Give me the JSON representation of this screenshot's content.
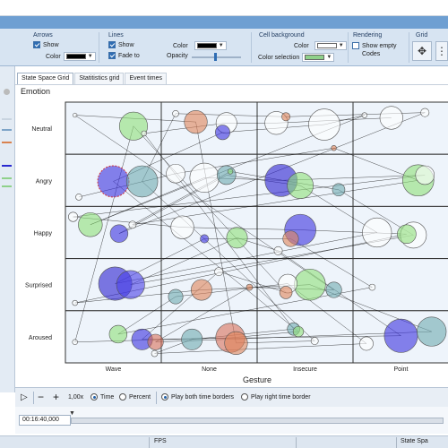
{
  "ribbon": {
    "arrows": {
      "title": "Arrows",
      "show_label": "Show",
      "show_checked": true,
      "color_label": "Color",
      "color": "#000000"
    },
    "lines": {
      "title": "Lines",
      "show_label": "Show",
      "show_checked": true,
      "fade_label": "Fade to",
      "fade_checked": true,
      "color_label": "Color",
      "color": "#000000",
      "opacity_label": "Opacity",
      "opacity": 0.55
    },
    "cell_background": {
      "title": "Cell background",
      "color_label": "Color",
      "color": "#ffffff",
      "selection_label": "Color selection",
      "selection_color": "#8fd18a"
    },
    "rendering": {
      "title": "Rendering",
      "show_empty_label": "Show empty Codes",
      "show_empty_checked": false
    },
    "grid": {
      "title": "Grid",
      "icons": [
        "move-arrows-icon",
        "grid-layout-icon"
      ]
    }
  },
  "tabs": [
    {
      "label": "State Space Grid",
      "active": true
    },
    {
      "label": "Statitistics grid",
      "active": false
    },
    {
      "label": "Event times",
      "active": false
    }
  ],
  "playbar": {
    "speed": "1,00x",
    "time_label": "Time",
    "time_selected": true,
    "percent_label": "Percent",
    "play_both_label": "Play both time borders",
    "play_both_selected": true,
    "play_right_label": "Play right time border"
  },
  "timeline": {
    "time": "00:16:40,000"
  },
  "statusbar": {
    "fps_label": "FPS",
    "state_label": "State Spa"
  },
  "chart_data": {
    "type": "scatter",
    "title": "",
    "ylabel": "Emotion",
    "xlabel": "Gesture",
    "x_categories": [
      "Wave",
      "None",
      "Insecure",
      "Point"
    ],
    "y_categories": [
      "Neutral",
      "Angry",
      "Happy",
      "Surprised",
      "Aroused"
    ],
    "cell_background": "#eef4fb",
    "grid_color": "#333333",
    "bubbles": [
      {
        "x": "Wave",
        "y": "Neutral",
        "dx": 0.71,
        "dy": 0.46,
        "r": 0.27,
        "color": "#90e07a"
      },
      {
        "x": "Wave",
        "y": "Neutral",
        "dx": 0.1,
        "dy": 0.25,
        "r": 0.04,
        "color": "#ffffff"
      },
      {
        "x": "Wave",
        "y": "Neutral",
        "dx": 0.82,
        "dy": 0.6,
        "r": 0.05,
        "color": "#ffffff"
      },
      {
        "x": "Wave",
        "y": "Angry",
        "dx": 0.5,
        "dy": 0.52,
        "r": 0.3,
        "color": "#3b30e0",
        "dashed": true
      },
      {
        "x": "Wave",
        "y": "Angry",
        "dx": 0.8,
        "dy": 0.52,
        "r": 0.3,
        "color": "#6faab0"
      },
      {
        "x": "Wave",
        "y": "Angry",
        "dx": 0.14,
        "dy": 0.82,
        "r": 0.06,
        "color": "#ffffff"
      },
      {
        "x": "Wave",
        "y": "Happy",
        "dx": 0.26,
        "dy": 0.35,
        "r": 0.23,
        "color": "#90e07a"
      },
      {
        "x": "Wave",
        "y": "Happy",
        "dx": 0.56,
        "dy": 0.52,
        "r": 0.17,
        "color": "#3b30e0"
      },
      {
        "x": "Wave",
        "y": "Happy",
        "dx": 0.7,
        "dy": 0.35,
        "r": 0.07,
        "color": "#ffffff"
      },
      {
        "x": "Wave",
        "y": "Happy",
        "dx": 0.08,
        "dy": 0.2,
        "r": 0.09,
        "color": "#ffffff"
      },
      {
        "x": "Wave",
        "y": "Surprised",
        "dx": 0.52,
        "dy": 0.48,
        "r": 0.32,
        "color": "#2b20d0"
      },
      {
        "x": "Wave",
        "y": "Surprised",
        "dx": 0.68,
        "dy": 0.5,
        "r": 0.27,
        "color": "#4a40e8"
      },
      {
        "x": "Wave",
        "y": "Surprised",
        "dx": 0.1,
        "dy": 0.85,
        "r": 0.05,
        "color": "#ffffff"
      },
      {
        "x": "Wave",
        "y": "Aroused",
        "dx": 0.55,
        "dy": 0.45,
        "r": 0.17,
        "color": "#90e07a"
      },
      {
        "x": "Wave",
        "y": "Aroused",
        "dx": 0.8,
        "dy": 0.55,
        "r": 0.2,
        "color": "#3b30e0"
      },
      {
        "x": "Wave",
        "y": "Aroused",
        "dx": 0.94,
        "dy": 0.6,
        "r": 0.15,
        "color": "#d9705a"
      },
      {
        "x": "Wave",
        "y": "Aroused",
        "dx": 0.93,
        "dy": 0.82,
        "r": 0.06,
        "color": "#ffffff"
      },
      {
        "x": "Wave",
        "y": "Aroused",
        "dx": 0.1,
        "dy": 0.6,
        "r": 0.05,
        "color": "#ffffff"
      },
      {
        "x": "None",
        "y": "Neutral",
        "dx": 0.36,
        "dy": 0.38,
        "r": 0.22,
        "color": "#e0845a"
      },
      {
        "x": "None",
        "y": "Neutral",
        "dx": 0.68,
        "dy": 0.4,
        "r": 0.2,
        "color": "#ffffff"
      },
      {
        "x": "None",
        "y": "Neutral",
        "dx": 0.64,
        "dy": 0.58,
        "r": 0.14,
        "color": "#3b30e0"
      },
      {
        "x": "None",
        "y": "Neutral",
        "dx": 0.15,
        "dy": 0.22,
        "r": 0.06,
        "color": "#ffffff"
      },
      {
        "x": "None",
        "y": "Angry",
        "dx": 0.15,
        "dy": 0.37,
        "r": 0.18,
        "color": "#ffffff"
      },
      {
        "x": "None",
        "y": "Angry",
        "dx": 0.45,
        "dy": 0.45,
        "r": 0.28,
        "color": "#ffffff"
      },
      {
        "x": "None",
        "y": "Angry",
        "dx": 0.68,
        "dy": 0.4,
        "r": 0.18,
        "color": "#6faab0"
      },
      {
        "x": "None",
        "y": "Angry",
        "dx": 0.72,
        "dy": 0.33,
        "r": 0.05,
        "color": "#90e07a"
      },
      {
        "x": "None",
        "y": "Happy",
        "dx": 0.22,
        "dy": 0.4,
        "r": 0.22,
        "color": "#ffffff"
      },
      {
        "x": "None",
        "y": "Happy",
        "dx": 0.45,
        "dy": 0.62,
        "r": 0.08,
        "color": "#3b30e0"
      },
      {
        "x": "None",
        "y": "Happy",
        "dx": 0.79,
        "dy": 0.6,
        "r": 0.2,
        "color": "#90e07a"
      },
      {
        "x": "None",
        "y": "Surprised",
        "dx": 0.42,
        "dy": 0.6,
        "r": 0.2,
        "color": "#e0845a"
      },
      {
        "x": "None",
        "y": "Surprised",
        "dx": 0.15,
        "dy": 0.73,
        "r": 0.14,
        "color": "#6faab0"
      },
      {
        "x": "None",
        "y": "Surprised",
        "dx": 0.6,
        "dy": 0.25,
        "r": 0.08,
        "color": "#ffffff"
      },
      {
        "x": "None",
        "y": "Surprised",
        "dx": 0.92,
        "dy": 0.55,
        "r": 0.06,
        "color": "#e0845a"
      },
      {
        "x": "None",
        "y": "Aroused",
        "dx": 0.32,
        "dy": 0.55,
        "r": 0.2,
        "color": "#6faab0"
      },
      {
        "x": "None",
        "y": "Aroused",
        "dx": 0.72,
        "dy": 0.52,
        "r": 0.28,
        "color": "#d9705a"
      },
      {
        "x": "None",
        "y": "Aroused",
        "dx": 0.78,
        "dy": 0.62,
        "r": 0.22,
        "color": "#e0845a"
      },
      {
        "x": "Insecure",
        "y": "Neutral",
        "dx": 0.2,
        "dy": 0.4,
        "r": 0.22,
        "color": "#ffffff"
      },
      {
        "x": "Insecure",
        "y": "Neutral",
        "dx": 0.7,
        "dy": 0.43,
        "r": 0.3,
        "color": "#ffffff"
      },
      {
        "x": "Insecure",
        "y": "Neutral",
        "dx": 0.3,
        "dy": 0.28,
        "r": 0.08,
        "color": "#e0845a"
      },
      {
        "x": "Insecure",
        "y": "Neutral",
        "dx": 0.8,
        "dy": 0.88,
        "r": 0.05,
        "color": "#e0845a"
      },
      {
        "x": "Insecure",
        "y": "Angry",
        "dx": 0.25,
        "dy": 0.5,
        "r": 0.31,
        "color": "#2b20d0"
      },
      {
        "x": "Insecure",
        "y": "Angry",
        "dx": 0.45,
        "dy": 0.6,
        "r": 0.25,
        "color": "#90e07a"
      },
      {
        "x": "Insecure",
        "y": "Angry",
        "dx": 0.85,
        "dy": 0.68,
        "r": 0.12,
        "color": "#6faab0"
      },
      {
        "x": "Insecure",
        "y": "Happy",
        "dx": 0.45,
        "dy": 0.45,
        "r": 0.3,
        "color": "#3b30e0"
      },
      {
        "x": "Insecure",
        "y": "Happy",
        "dx": 0.35,
        "dy": 0.62,
        "r": 0.15,
        "color": "#e0845a"
      },
      {
        "x": "Insecure",
        "y": "Happy",
        "dx": 0.22,
        "dy": 0.85,
        "r": 0.08,
        "color": "#ffffff"
      },
      {
        "x": "Insecure",
        "y": "Surprised",
        "dx": 0.55,
        "dy": 0.5,
        "r": 0.3,
        "color": "#90e07a"
      },
      {
        "x": "Insecure",
        "y": "Surprised",
        "dx": 0.32,
        "dy": 0.48,
        "r": 0.18,
        "color": "#ffffff"
      },
      {
        "x": "Insecure",
        "y": "Surprised",
        "dx": 0.3,
        "dy": 0.65,
        "r": 0.12,
        "color": "#e0845a"
      },
      {
        "x": "Insecure",
        "y": "Surprised",
        "dx": 0.8,
        "dy": 0.6,
        "r": 0.15,
        "color": "#6faab0"
      },
      {
        "x": "Insecure",
        "y": "Aroused",
        "dx": 0.38,
        "dy": 0.35,
        "r": 0.12,
        "color": "#6faab0"
      },
      {
        "x": "Insecure",
        "y": "Aroused",
        "dx": 0.43,
        "dy": 0.4,
        "r": 0.1,
        "color": "#90e07a"
      },
      {
        "x": "Insecure",
        "y": "Aroused",
        "dx": 0.6,
        "dy": 0.58,
        "r": 0.07,
        "color": "#ffffff"
      },
      {
        "x": "Point",
        "y": "Neutral",
        "dx": 0.4,
        "dy": 0.3,
        "r": 0.22,
        "color": "#ffffff"
      },
      {
        "x": "Point",
        "y": "Neutral",
        "dx": 0.12,
        "dy": 0.25,
        "r": 0.05,
        "color": "#ffffff"
      },
      {
        "x": "Point",
        "y": "Neutral",
        "dx": 0.75,
        "dy": 0.2,
        "r": 0.08,
        "color": "#ffffff"
      },
      {
        "x": "Point",
        "y": "Angry",
        "dx": 0.68,
        "dy": 0.5,
        "r": 0.3,
        "color": "#90e07a"
      },
      {
        "x": "Point",
        "y": "Angry",
        "dx": 0.75,
        "dy": 0.4,
        "r": 0.18,
        "color": "#ffffff"
      },
      {
        "x": "Point",
        "y": "Happy",
        "dx": 0.25,
        "dy": 0.5,
        "r": 0.28,
        "color": "#ffffff"
      },
      {
        "x": "Point",
        "y": "Happy",
        "dx": 0.63,
        "dy": 0.55,
        "r": 0.25,
        "color": "#ffffff"
      },
      {
        "x": "Point",
        "y": "Happy",
        "dx": 0.56,
        "dy": 0.53,
        "r": 0.18,
        "color": "#90e07a"
      },
      {
        "x": "Point",
        "y": "Surprised",
        "dx": 0.2,
        "dy": 0.55,
        "r": 0.06,
        "color": "#ffffff"
      },
      {
        "x": "Point",
        "y": "Aroused",
        "dx": 0.5,
        "dy": 0.48,
        "r": 0.32,
        "color": "#3b30e0"
      },
      {
        "x": "Point",
        "y": "Aroused",
        "dx": 0.82,
        "dy": 0.4,
        "r": 0.28,
        "color": "#6faab0"
      },
      {
        "x": "Point",
        "y": "Aroused",
        "dx": 0.14,
        "dy": 0.63,
        "r": 0.13,
        "color": "#ffffff"
      }
    ]
  }
}
